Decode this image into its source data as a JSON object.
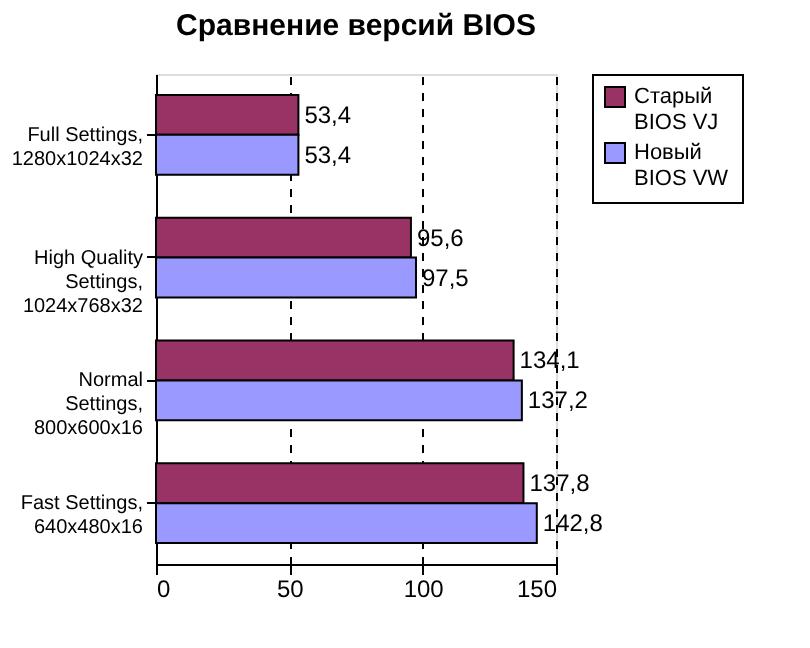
{
  "chart_data": {
    "type": "bar",
    "orientation": "horizontal",
    "title": "Сравнение версий BIOS",
    "categories": [
      "Full Settings,\n1280x1024x32",
      "High Quality\nSettings,\n1024x768x32",
      "Normal\nSettings,\n800x600x16",
      "Fast Settings,\n640x480x16"
    ],
    "series": [
      {
        "name": "Старый BIOS VJ",
        "color": "#993366",
        "values": [
          53.4,
          95.6,
          134.1,
          137.8
        ],
        "value_labels": [
          "53,4",
          "95,6",
          "134,1",
          "137,8"
        ]
      },
      {
        "name": "Новый BIOS VW",
        "color": "#9999ff",
        "values": [
          53.4,
          97.5,
          137.2,
          142.8
        ],
        "value_labels": [
          "53,4",
          "97,5",
          "137,2",
          "142,8"
        ]
      }
    ],
    "xlim": [
      0,
      150
    ],
    "xticks": [
      0,
      50,
      100,
      150
    ],
    "grid": "x",
    "legend": "right"
  }
}
